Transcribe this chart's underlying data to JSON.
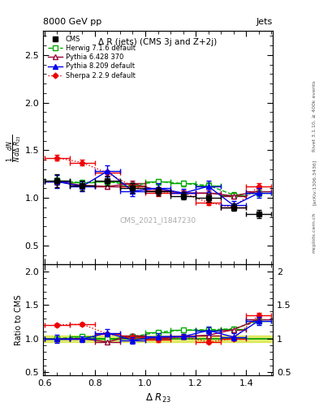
{
  "title_main": "Δ R (jets) (CMS 3j and Z+2j)",
  "header_left": "8000 GeV pp",
  "header_right": "Jets",
  "ylabel_main": "$\\frac{1}{N}\\frac{dN}{d\\Delta\\ R_{23}}$",
  "ylabel_ratio": "Ratio to CMS",
  "xlabel": "$\\Delta\\ R_{23}$",
  "watermark": "CMS_2021_I1847230",
  "right_label_top": "Rivet 3.1.10, ≥ 400k events",
  "right_label_mid": "[arXiv:1306.3436]",
  "right_label_bot": "mcplots.cern.ch",
  "x_values": [
    0.65,
    0.75,
    0.85,
    0.95,
    1.05,
    1.15,
    1.25,
    1.35,
    1.45
  ],
  "x_errs": [
    0.05,
    0.05,
    0.05,
    0.05,
    0.05,
    0.05,
    0.05,
    0.05,
    0.05
  ],
  "cms_y": [
    1.18,
    1.13,
    1.18,
    1.1,
    1.07,
    1.02,
    1.0,
    0.9,
    0.83
  ],
  "cms_yerr": [
    0.07,
    0.05,
    0.05,
    0.05,
    0.04,
    0.04,
    0.04,
    0.04,
    0.04
  ],
  "herwig_y": [
    1.18,
    1.16,
    1.17,
    1.13,
    1.17,
    1.15,
    1.13,
    1.03,
    1.05
  ],
  "herwig_yerr": [
    0.03,
    0.03,
    0.03,
    0.03,
    0.03,
    0.03,
    0.03,
    0.03,
    0.03
  ],
  "pythia6_y": [
    1.17,
    1.13,
    1.12,
    1.15,
    1.08,
    1.05,
    1.05,
    1.02,
    1.07
  ],
  "pythia6_yerr": [
    0.03,
    0.03,
    0.03,
    0.03,
    0.03,
    0.03,
    0.03,
    0.03,
    0.03
  ],
  "pythia8_y": [
    1.17,
    1.12,
    1.28,
    1.07,
    1.1,
    1.05,
    1.12,
    0.92,
    1.05
  ],
  "pythia8_yerr": [
    0.07,
    0.05,
    0.06,
    0.05,
    0.05,
    0.04,
    0.06,
    0.05,
    0.05
  ],
  "sherpa_y": [
    1.42,
    1.37,
    1.26,
    1.12,
    1.05,
    1.05,
    0.95,
    0.9,
    1.12
  ],
  "sherpa_yerr": [
    0.03,
    0.03,
    0.03,
    0.03,
    0.03,
    0.03,
    0.03,
    0.03,
    0.03
  ],
  "cms_band_lo": 0.95,
  "cms_band_hi": 1.05,
  "xlim": [
    0.595,
    1.505
  ],
  "ylim_main": [
    0.3,
    2.75
  ],
  "ylim_ratio": [
    0.45,
    2.1
  ],
  "cms_color": "#000000",
  "herwig_color": "#00aa00",
  "pythia6_color": "#990033",
  "pythia8_color": "#0000ee",
  "sherpa_color": "#ee0000",
  "yticks_main": [
    0.5,
    1.0,
    1.5,
    2.0,
    2.5
  ],
  "yticks_ratio": [
    0.5,
    1.0,
    1.5,
    2.0
  ]
}
